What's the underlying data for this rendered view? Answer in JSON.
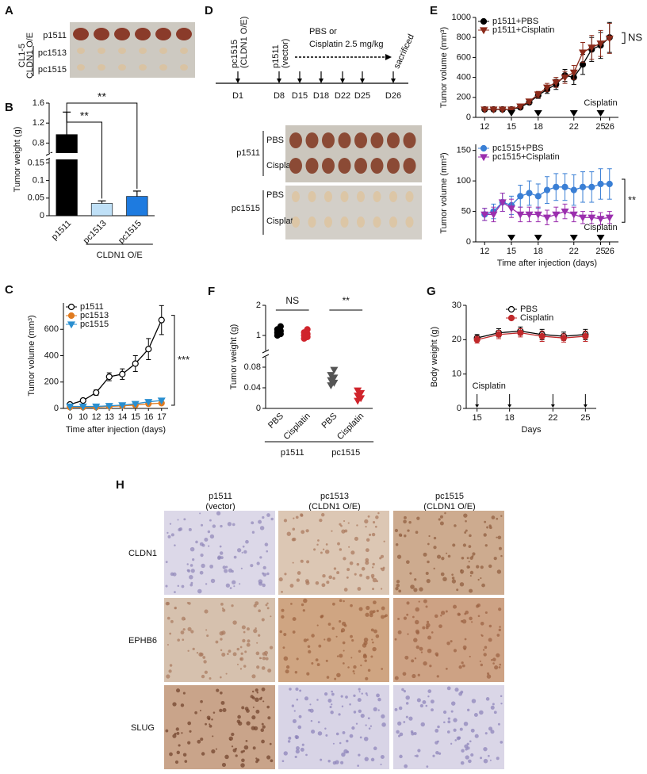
{
  "panels": {
    "letters": [
      "A",
      "B",
      "C",
      "D",
      "E",
      "F",
      "G",
      "H"
    ]
  },
  "panel_a": {
    "row_labels": [
      "p1511",
      "pc1513",
      "pc1515"
    ],
    "side_label": [
      "CL1-5",
      "CLDN1 O/E"
    ]
  },
  "panel_d": {
    "timeline_days": [
      "D1",
      "D8",
      "D15",
      "D18",
      "D22",
      "D25",
      "D26"
    ],
    "events": [
      [
        "pc1515",
        "(CLDN1 O/E)"
      ],
      [
        "p1511",
        "(vector)"
      ],
      [
        "sacrificed"
      ]
    ],
    "treatment": [
      "PBS or",
      "Cisplatin 2.5 mg/kg"
    ],
    "photo_rows": [
      "PBS",
      "Cisplatin",
      "PBS",
      "Cisplatin"
    ],
    "photo_groups": [
      "p1511",
      "pc1515"
    ]
  },
  "panel_h": {
    "columns": [
      [
        "p1511",
        "(vector)"
      ],
      [
        "pc1513",
        "(CLDN1 O/E)"
      ],
      [
        "pc1515",
        "(CLDN1 O/E)"
      ]
    ],
    "rows": [
      "CLDN1",
      "EPHB6",
      "SLUG"
    ]
  },
  "chart_data": [
    {
      "type": "bar",
      "y_label": "Tumor weight (g)",
      "categories": [
        "p1511",
        "pc1513",
        "pc1515"
      ],
      "values": [
        0.97,
        0.035,
        0.055
      ],
      "errors": [
        0.45,
        0.007,
        0.015
      ],
      "colors": [
        "#000000",
        "#bfe0f7",
        "#1e7be0"
      ],
      "ylim": [
        0,
        1.6
      ],
      "y_break": [
        0.16,
        0.6
      ],
      "yticks": [
        0,
        0.05,
        0.1,
        0.15,
        0.8,
        1.2,
        1.6
      ],
      "significance": [
        "**",
        "**"
      ],
      "group_label": "CLDN1 O/E"
    },
    {
      "type": "line",
      "y_label": "Tumor volume (mm³)",
      "x_label": "Time after injection (days)",
      "categories": [
        "0",
        "10",
        "12",
        "13",
        "14",
        "15",
        "16",
        "17"
      ],
      "ylim": [
        0,
        800
      ],
      "yticks": [
        0,
        200,
        400,
        600
      ],
      "legend": "top-left",
      "significance": "***",
      "series": [
        {
          "name": "p1511",
          "color": "#000000",
          "marker": "circle",
          "hollow": true,
          "values": [
            30,
            60,
            120,
            240,
            260,
            340,
            450,
            670
          ],
          "errors": [
            10,
            10,
            20,
            30,
            40,
            60,
            80,
            110
          ]
        },
        {
          "name": "pc1513",
          "color": "#e07b20",
          "marker": "circle",
          "values": [
            10,
            10,
            10,
            15,
            20,
            25,
            35,
            40
          ]
        },
        {
          "name": "pc1515",
          "color": "#2a8fd0",
          "marker": "triangle",
          "values": [
            15,
            15,
            15,
            20,
            25,
            35,
            50,
            60
          ]
        }
      ]
    },
    {
      "type": "line",
      "y_label": "Tumor volume (mm³)",
      "x": [
        12,
        13,
        14,
        15,
        16,
        17,
        18,
        19,
        20,
        21,
        22,
        23,
        24,
        25,
        26
      ],
      "xlim": [
        11,
        27
      ],
      "xticks": [
        12,
        15,
        18,
        22,
        25,
        26
      ],
      "ylim": [
        0,
        1000
      ],
      "yticks": [
        0,
        200,
        400,
        600,
        800,
        1000
      ],
      "legend": "top-left",
      "significance": "NS",
      "treatment_days": [
        15,
        18,
        22,
        25
      ],
      "treatment_label": "Cisplatin",
      "treatment_marker": "triangle",
      "series": [
        {
          "name": "p1511+PBS",
          "color": "#000000",
          "marker": "circle",
          "values": [
            80,
            80,
            80,
            80,
            100,
            150,
            220,
            280,
            330,
            420,
            400,
            530,
            680,
            720,
            800
          ],
          "errors": [
            10,
            10,
            10,
            10,
            15,
            20,
            30,
            40,
            50,
            60,
            70,
            100,
            120,
            130,
            150
          ]
        },
        {
          "name": "p1511+Cisplatin",
          "color": "#8b2a1a",
          "marker": "triangle",
          "values": [
            80,
            80,
            80,
            80,
            110,
            160,
            230,
            300,
            350,
            400,
            450,
            650,
            700,
            740,
            790
          ],
          "errors": [
            10,
            10,
            10,
            10,
            15,
            20,
            30,
            40,
            50,
            60,
            70,
            100,
            120,
            130,
            150
          ]
        }
      ]
    },
    {
      "type": "line",
      "y_label": "Tumor volume (mm³)",
      "x_label": "Time after injection (days)",
      "x": [
        12,
        13,
        14,
        15,
        16,
        17,
        18,
        19,
        20,
        21,
        22,
        23,
        24,
        25,
        26
      ],
      "xlim": [
        11,
        27
      ],
      "xticks": [
        12,
        15,
        18,
        22,
        25,
        26
      ],
      "ylim": [
        0,
        160
      ],
      "yticks": [
        0,
        50,
        100,
        150
      ],
      "legend": "top-left",
      "significance": "**",
      "treatment_days": [
        15,
        18,
        22,
        25
      ],
      "treatment_label": "Cisplatin",
      "treatment_marker": "triangle",
      "series": [
        {
          "name": "pc1515+PBS",
          "color": "#3a7fd5",
          "marker": "circle",
          "values": [
            45,
            50,
            65,
            60,
            75,
            80,
            75,
            85,
            90,
            90,
            85,
            90,
            90,
            95,
            95
          ],
          "errors": [
            10,
            12,
            15,
            15,
            18,
            20,
            20,
            22,
            22,
            22,
            25,
            25,
            25,
            25,
            25
          ]
        },
        {
          "name": "pc1515+Cisplatin",
          "color": "#9b2fae",
          "marker": "triangle",
          "values": [
            45,
            45,
            65,
            55,
            45,
            45,
            45,
            40,
            45,
            50,
            45,
            40,
            40,
            38,
            40
          ],
          "errors": [
            10,
            12,
            15,
            15,
            12,
            12,
            12,
            12,
            12,
            12,
            12,
            10,
            10,
            10,
            10
          ]
        }
      ]
    },
    {
      "type": "strip",
      "y_label": "Tumor weight (g)",
      "categories": [
        "PBS",
        "Cisplatin",
        "PBS",
        "Cisplatin"
      ],
      "groups": [
        "p1511",
        "pc1515"
      ],
      "values": [
        [
          1.0,
          1.05,
          1.1,
          1.15,
          1.2,
          1.3
        ],
        [
          0.9,
          0.95,
          1.0,
          1.05,
          1.1,
          1.2
        ],
        [
          0.045,
          0.05,
          0.055,
          0.06,
          0.065,
          0.075
        ],
        [
          0.015,
          0.02,
          0.025,
          0.03,
          0.035
        ]
      ],
      "colors": [
        "#000000",
        "#d0242c",
        "#555555",
        "#d0242c"
      ],
      "markers": [
        "circle",
        "circle",
        "triangle",
        "triangle"
      ],
      "ylim": [
        0,
        2
      ],
      "y_break": [
        0.1,
        0.5
      ],
      "yticks": [
        0,
        0.04,
        0.08,
        1,
        2
      ],
      "significance": [
        "NS",
        "**"
      ]
    },
    {
      "type": "line",
      "y_label": "Body weight (g)",
      "x_label": "Days",
      "x": [
        15,
        17,
        19,
        21,
        23,
        25
      ],
      "xlim": [
        14,
        26
      ],
      "xticks": [
        15,
        18,
        22,
        25
      ],
      "ylim": [
        0,
        30
      ],
      "yticks": [
        0,
        10,
        20,
        30
      ],
      "legend": "top",
      "treatment_days": [
        15,
        18,
        22,
        25
      ],
      "treatment_label": "Cisplatin",
      "treatment_marker": "arrow",
      "series": [
        {
          "name": "PBS",
          "color": "#000000",
          "marker": "circle",
          "hollow": true,
          "values": [
            20.5,
            22,
            22.5,
            21.5,
            21,
            21.5
          ],
          "errors": [
            1,
            1.2,
            1.2,
            1.5,
            1.2,
            1.5
          ]
        },
        {
          "name": "Cisplatin",
          "color": "#c0282a",
          "marker": "circle",
          "values": [
            20,
            21.5,
            22,
            21,
            20.5,
            21
          ],
          "errors": [
            1,
            1.2,
            1.2,
            1.5,
            1.2,
            1.5
          ]
        }
      ]
    }
  ]
}
